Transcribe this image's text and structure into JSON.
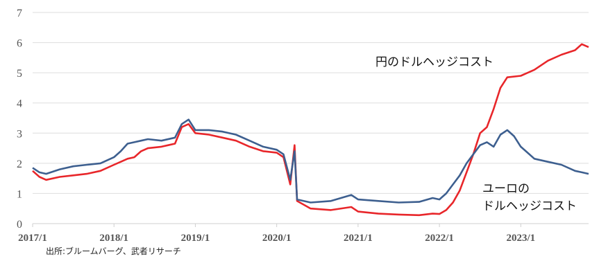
{
  "chart_data": {
    "type": "line",
    "title": "",
    "xlabel": "",
    "ylabel": "",
    "ylim": [
      0,
      7
    ],
    "xlim": [
      "2017-01",
      "2023-11"
    ],
    "grid": "horizontal",
    "y_ticks": [
      "0",
      "1",
      "2",
      "3",
      "4",
      "5",
      "6",
      "7"
    ],
    "x_ticks": [
      {
        "label": "2017/1",
        "date": "2017-01"
      },
      {
        "label": "2018/1",
        "date": "2018-01"
      },
      {
        "label": "2019/1",
        "date": "2019-01"
      },
      {
        "label": "2020/1",
        "date": "2020-01"
      },
      {
        "label": "2021/1",
        "date": "2021-01"
      },
      {
        "label": "2022/1",
        "date": "2022-01"
      },
      {
        "label": "2023/1",
        "date": "2023-01"
      }
    ],
    "series": [
      {
        "name": "円のドルヘッジコスト",
        "color": "#e8262a",
        "points": [
          [
            "2017-01",
            1.75
          ],
          [
            "2017-02",
            1.55
          ],
          [
            "2017-03",
            1.45
          ],
          [
            "2017-05",
            1.55
          ],
          [
            "2017-07",
            1.6
          ],
          [
            "2017-09",
            1.65
          ],
          [
            "2017-11",
            1.75
          ],
          [
            "2018-01",
            1.95
          ],
          [
            "2018-02",
            2.05
          ],
          [
            "2018-03",
            2.15
          ],
          [
            "2018-04",
            2.2
          ],
          [
            "2018-05",
            2.4
          ],
          [
            "2018-06",
            2.5
          ],
          [
            "2018-08",
            2.55
          ],
          [
            "2018-09",
            2.6
          ],
          [
            "2018-10",
            2.65
          ],
          [
            "2018-11",
            3.2
          ],
          [
            "2018-12",
            3.3
          ],
          [
            "2019-01",
            3.0
          ],
          [
            "2019-03",
            2.95
          ],
          [
            "2019-05",
            2.85
          ],
          [
            "2019-07",
            2.75
          ],
          [
            "2019-09",
            2.55
          ],
          [
            "2019-11",
            2.4
          ],
          [
            "2020-01",
            2.35
          ],
          [
            "2020-02",
            2.2
          ],
          [
            "2020-03",
            1.3
          ],
          [
            "2020-03-20",
            2.6
          ],
          [
            "2020-04",
            0.75
          ],
          [
            "2020-06",
            0.5
          ],
          [
            "2020-09",
            0.45
          ],
          [
            "2020-12",
            0.55
          ],
          [
            "2021-01",
            0.4
          ],
          [
            "2021-04",
            0.33
          ],
          [
            "2021-07",
            0.3
          ],
          [
            "2021-10",
            0.28
          ],
          [
            "2021-12",
            0.33
          ],
          [
            "2022-01",
            0.32
          ],
          [
            "2022-02",
            0.45
          ],
          [
            "2022-03",
            0.7
          ],
          [
            "2022-04",
            1.1
          ],
          [
            "2022-05",
            1.7
          ],
          [
            "2022-06",
            2.3
          ],
          [
            "2022-07",
            3.0
          ],
          [
            "2022-08",
            3.2
          ],
          [
            "2022-09",
            3.8
          ],
          [
            "2022-10",
            4.5
          ],
          [
            "2022-11",
            4.85
          ],
          [
            "2023-01",
            4.9
          ],
          [
            "2023-03",
            5.1
          ],
          [
            "2023-05",
            5.4
          ],
          [
            "2023-07",
            5.6
          ],
          [
            "2023-09",
            5.75
          ],
          [
            "2023-10",
            5.95
          ],
          [
            "2023-11",
            5.85
          ]
        ]
      },
      {
        "name": "ユーロのドルヘッジコスト",
        "color": "#3d5f8f",
        "points": [
          [
            "2017-01",
            1.85
          ],
          [
            "2017-02",
            1.7
          ],
          [
            "2017-03",
            1.65
          ],
          [
            "2017-05",
            1.8
          ],
          [
            "2017-07",
            1.9
          ],
          [
            "2017-09",
            1.95
          ],
          [
            "2017-11",
            2.0
          ],
          [
            "2018-01",
            2.2
          ],
          [
            "2018-02",
            2.4
          ],
          [
            "2018-03",
            2.65
          ],
          [
            "2018-04",
            2.7
          ],
          [
            "2018-05",
            2.75
          ],
          [
            "2018-06",
            2.8
          ],
          [
            "2018-08",
            2.75
          ],
          [
            "2018-10",
            2.85
          ],
          [
            "2018-11",
            3.3
          ],
          [
            "2018-12",
            3.45
          ],
          [
            "2019-01",
            3.1
          ],
          [
            "2019-03",
            3.1
          ],
          [
            "2019-05",
            3.05
          ],
          [
            "2019-07",
            2.95
          ],
          [
            "2019-09",
            2.75
          ],
          [
            "2019-11",
            2.55
          ],
          [
            "2020-01",
            2.45
          ],
          [
            "2020-02",
            2.3
          ],
          [
            "2020-03",
            1.45
          ],
          [
            "2020-03-20",
            2.4
          ],
          [
            "2020-04",
            0.8
          ],
          [
            "2020-06",
            0.7
          ],
          [
            "2020-09",
            0.75
          ],
          [
            "2020-12",
            0.95
          ],
          [
            "2021-01",
            0.8
          ],
          [
            "2021-04",
            0.75
          ],
          [
            "2021-07",
            0.7
          ],
          [
            "2021-10",
            0.72
          ],
          [
            "2021-12",
            0.85
          ],
          [
            "2022-01",
            0.8
          ],
          [
            "2022-02",
            1.0
          ],
          [
            "2022-03",
            1.3
          ],
          [
            "2022-04",
            1.6
          ],
          [
            "2022-05",
            2.0
          ],
          [
            "2022-06",
            2.3
          ],
          [
            "2022-07",
            2.6
          ],
          [
            "2022-08",
            2.7
          ],
          [
            "2022-09",
            2.55
          ],
          [
            "2022-10",
            2.95
          ],
          [
            "2022-11",
            3.1
          ],
          [
            "2022-12",
            2.9
          ],
          [
            "2023-01",
            2.55
          ],
          [
            "2023-03",
            2.15
          ],
          [
            "2023-05",
            2.05
          ],
          [
            "2023-07",
            1.95
          ],
          [
            "2023-09",
            1.75
          ],
          [
            "2023-10",
            1.7
          ],
          [
            "2023-11",
            1.65
          ]
        ]
      }
    ],
    "annotations": [
      {
        "text": "円のドルヘッジコスト",
        "series": 0
      },
      {
        "text": "ユーロの",
        "series": 1
      },
      {
        "text": "ドルヘッジコスト",
        "series": 1
      }
    ],
    "source": "出所:ブルームバーグ、武者リサーチ"
  }
}
